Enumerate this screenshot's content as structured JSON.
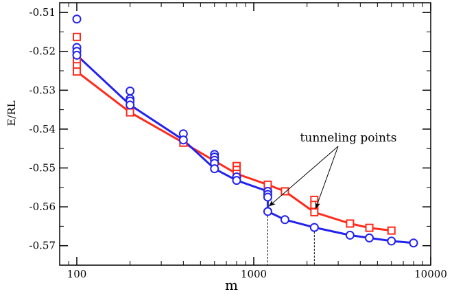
{
  "chart_data": {
    "type": "line",
    "xlabel": "m",
    "ylabel": "E/RL",
    "x_scale": "log",
    "xlim": [
      80,
      10000
    ],
    "ylim": [
      -0.575,
      -0.5075
    ],
    "x_ticks": [
      100,
      1000,
      10000
    ],
    "x_tick_labels": [
      "100",
      "1000",
      "10000"
    ],
    "y_ticks": [
      -0.51,
      -0.52,
      -0.53,
      -0.54,
      -0.55,
      -0.56,
      -0.57
    ],
    "y_tick_labels": [
      "-0.51",
      "-0.52",
      "-0.53",
      "-0.54",
      "-0.55",
      "-0.56",
      "-0.57"
    ],
    "grid": false,
    "series": [
      {
        "marker": "square",
        "color": "#ff2a1a",
        "points": [
          [
            100,
            -0.5163
          ],
          [
            100,
            -0.5225
          ],
          [
            100,
            -0.5238
          ],
          [
            100,
            -0.5252
          ],
          [
            200,
            -0.5335
          ],
          [
            200,
            -0.5357
          ],
          [
            400,
            -0.5435
          ],
          [
            800,
            -0.5495
          ],
          [
            800,
            -0.5505
          ],
          [
            800,
            -0.5515
          ],
          [
            1200,
            -0.5543
          ],
          [
            1500,
            -0.556
          ],
          [
            2200,
            -0.5582
          ],
          [
            2200,
            -0.5595
          ],
          [
            2200,
            -0.5614
          ],
          [
            3500,
            -0.5643
          ],
          [
            4500,
            -0.5654
          ],
          [
            6000,
            -0.5661
          ]
        ],
        "line": [
          [
            100,
            -0.5252
          ],
          [
            200,
            -0.5357
          ],
          [
            400,
            -0.5435
          ],
          [
            800,
            -0.5515
          ],
          [
            1200,
            -0.5543
          ],
          [
            1500,
            -0.556
          ],
          [
            2200,
            -0.5614
          ],
          [
            3500,
            -0.5643
          ],
          [
            4500,
            -0.5654
          ],
          [
            6000,
            -0.5661
          ]
        ]
      },
      {
        "marker": "circle",
        "color": "#2222ee",
        "points": [
          [
            100,
            -0.5117
          ],
          [
            100,
            -0.519
          ],
          [
            100,
            -0.52
          ],
          [
            100,
            -0.521
          ],
          [
            200,
            -0.5302
          ],
          [
            200,
            -0.5322
          ],
          [
            200,
            -0.5328
          ],
          [
            200,
            -0.5338
          ],
          [
            400,
            -0.5412
          ],
          [
            400,
            -0.5428
          ],
          [
            600,
            -0.5465
          ],
          [
            600,
            -0.5472
          ],
          [
            600,
            -0.548
          ],
          [
            600,
            -0.5488
          ],
          [
            600,
            -0.5502
          ],
          [
            800,
            -0.5523
          ],
          [
            800,
            -0.5532
          ],
          [
            1200,
            -0.556
          ],
          [
            1200,
            -0.5568
          ],
          [
            1200,
            -0.5575
          ],
          [
            1200,
            -0.5612
          ],
          [
            1500,
            -0.5633
          ],
          [
            2200,
            -0.5653
          ],
          [
            3500,
            -0.5673
          ],
          [
            4500,
            -0.568
          ],
          [
            6000,
            -0.5688
          ],
          [
            8000,
            -0.5693
          ]
        ],
        "line": [
          [
            100,
            -0.521
          ],
          [
            200,
            -0.5338
          ],
          [
            400,
            -0.5428
          ],
          [
            600,
            -0.5502
          ],
          [
            800,
            -0.5532
          ],
          [
            1200,
            -0.556
          ],
          [
            1200,
            -0.5612
          ],
          [
            1500,
            -0.5633
          ],
          [
            2200,
            -0.5653
          ],
          [
            3500,
            -0.5673
          ],
          [
            4500,
            -0.568
          ],
          [
            6000,
            -0.5688
          ],
          [
            8000,
            -0.5693
          ]
        ]
      }
    ],
    "annotations": [
      {
        "text": "tunneling points",
        "arrow_targets": [
          [
            1200,
            -0.5598
          ],
          [
            2200,
            -0.5604
          ]
        ],
        "dashed_markers": [
          [
            1200,
            -0.5612
          ],
          [
            2200,
            -0.5653
          ]
        ]
      }
    ]
  }
}
